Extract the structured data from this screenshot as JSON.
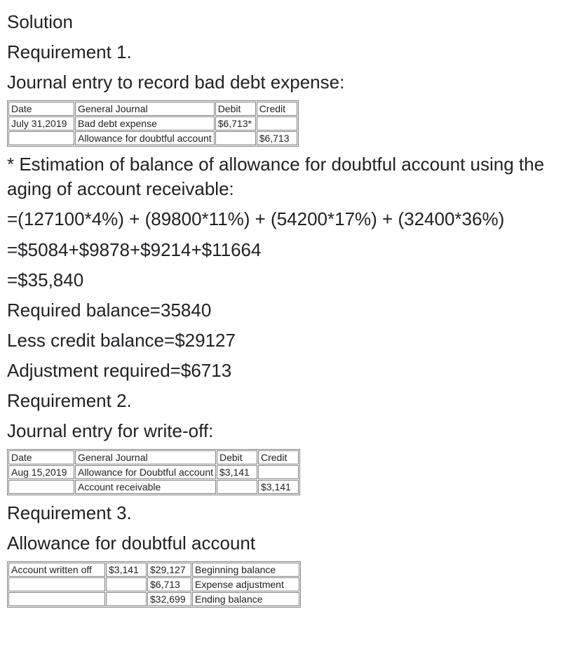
{
  "headings": {
    "solution": "Solution",
    "req1": "Requirement 1.",
    "je_baddebt": "Journal entry to record bad debt expense:",
    "est_intro": "* Estimation of balance of allowance for doubtful account using the aging of account receivable:",
    "eq1": "=(127100*4%) + (89800*11%) + (54200*17%) + (32400*36%)",
    "eq2": "=$5084+$9878+$9214+$11664",
    "eq3": "=$35,840",
    "req_bal": "Required balance=35840",
    "less_credit": "Less credit balance=$29127",
    "adj_req": "Adjustment required=$6713",
    "req2": "Requirement 2.",
    "je_writeoff": "Journal entry for write-off:",
    "req3": "Requirement 3.",
    "alloc_hdr": "Allowance for doubtful account"
  },
  "journal1": {
    "header": {
      "date": "Date",
      "desc": "General Journal",
      "debit": "Debit",
      "credit": "Credit"
    },
    "rows": [
      {
        "date": "July 31,2019",
        "desc": "Bad debt expense",
        "debit": "$6,713*",
        "credit": ""
      },
      {
        "date": "",
        "desc": "Allowance for doubtful account",
        "debit": "",
        "credit": "$6,713"
      }
    ]
  },
  "journal2": {
    "header": {
      "date": "Date",
      "desc": "General Journal",
      "debit": "Debit",
      "credit": "Credit"
    },
    "rows": [
      {
        "date": "Aug 15,2019",
        "desc": "Allowance for Doubtful account",
        "debit": "$3,141",
        "credit": ""
      },
      {
        "date": "",
        "desc": "Account receivable",
        "debit": "",
        "credit": "$3,141"
      }
    ]
  },
  "taccount": {
    "rows": [
      {
        "a": "Account written off",
        "b": "$3,141",
        "c": "$29,127",
        "d": "Beginning balance"
      },
      {
        "a": "",
        "b": "",
        "c": "$6,713",
        "d": "Expense adjustment"
      },
      {
        "a": "",
        "b": "",
        "c": "$32,699",
        "d": "Ending balance"
      }
    ]
  }
}
